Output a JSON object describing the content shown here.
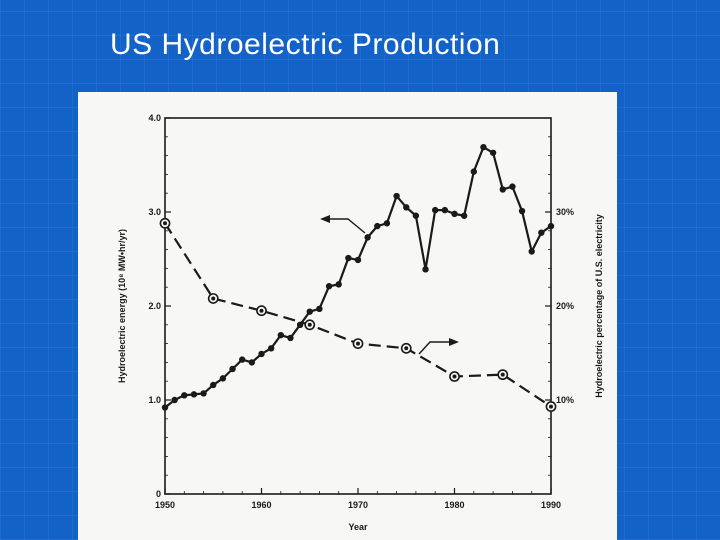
{
  "slide": {
    "title": "US Hydroelectric Production"
  },
  "chart_data": {
    "type": "line",
    "xlabel": "Year",
    "ylabel": "Hydroelectric energy (10⁸ MW•hr/yr)",
    "ylabel_right": "Hydroelectric percentage of U.S. electricity",
    "xlim": [
      1950,
      1990
    ],
    "ylim": [
      0,
      4.0
    ],
    "ylim_right": [
      0,
      40
    ],
    "x_ticks": [
      "1950",
      "1960",
      "1970",
      "1980",
      "1990"
    ],
    "y_ticks": [
      "0",
      "1.0",
      "2.0",
      "3.0",
      "4.0"
    ],
    "y_ticks_right": [
      "10%",
      "20%",
      "30%"
    ],
    "grid": false,
    "series": [
      {
        "axis": "left",
        "style": "solid",
        "x": [
          1950,
          1951,
          1952,
          1953,
          1954,
          1955,
          1956,
          1957,
          1958,
          1959,
          1960,
          1961,
          1962,
          1963,
          1964,
          1965,
          1966,
          1967,
          1968,
          1969,
          1970,
          1971,
          1972,
          1973,
          1974,
          1975,
          1976,
          1977,
          1978,
          1979,
          1980,
          1981,
          1982,
          1983,
          1984,
          1985,
          1986,
          1987,
          1988,
          1989,
          1990
        ],
        "values": [
          0.92,
          1.0,
          1.05,
          1.06,
          1.07,
          1.16,
          1.23,
          1.33,
          1.43,
          1.4,
          1.49,
          1.55,
          1.69,
          1.66,
          1.8,
          1.94,
          1.97,
          2.21,
          2.23,
          2.51,
          2.49,
          2.73,
          2.85,
          2.88,
          3.17,
          3.05,
          2.96,
          2.39,
          3.02,
          3.02,
          2.98,
          2.96,
          3.43,
          3.69,
          3.63,
          3.24,
          3.27,
          3.01,
          2.58,
          2.78,
          2.85
        ]
      },
      {
        "axis": "right",
        "style": "dashed",
        "x": [
          1950,
          1955,
          1960,
          1965,
          1970,
          1975,
          1980,
          1985,
          1990
        ],
        "values": [
          28.8,
          20.8,
          19.5,
          18.0,
          16.0,
          15.5,
          12.5,
          12.7,
          9.3
        ]
      }
    ]
  }
}
